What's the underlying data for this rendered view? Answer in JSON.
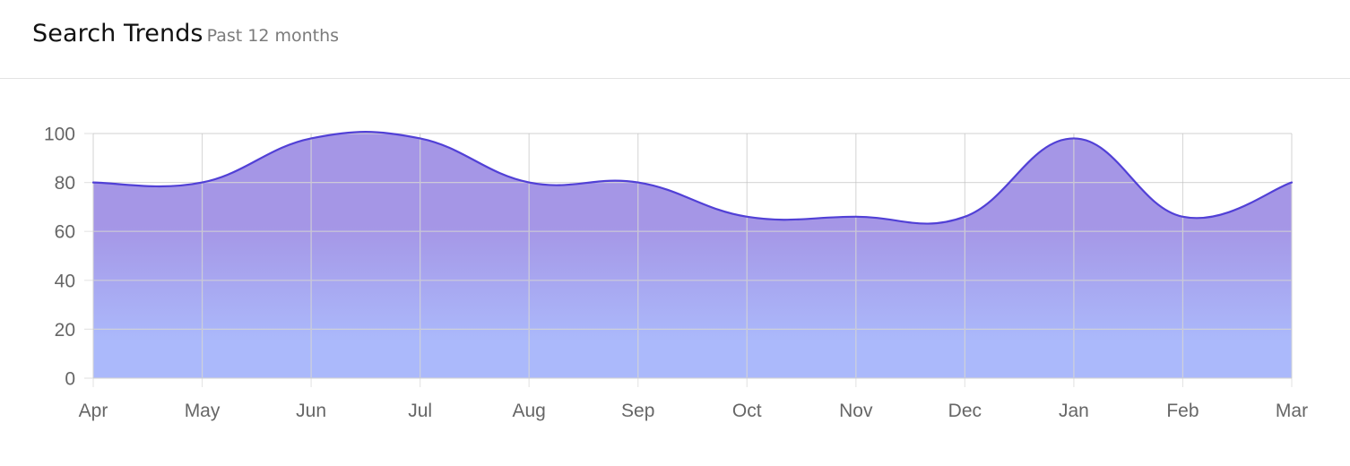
{
  "header": {
    "title": "Search Trends",
    "subtitle": "Past 12 months"
  },
  "colors": {
    "line": "#5140d6",
    "fill_top": "#a596e6",
    "fill_bottom": "#abb9fb",
    "grid": "#e2e2e2",
    "tick_text": "#666666"
  },
  "chart_data": {
    "type": "area",
    "title": "",
    "xlabel": "",
    "ylabel": "",
    "categories": [
      "Apr",
      "May",
      "Jun",
      "Jul",
      "Aug",
      "Sep",
      "Oct",
      "Nov",
      "Dec",
      "Jan",
      "Feb",
      "Mar"
    ],
    "series": [
      {
        "values": [
          80,
          80,
          98,
          98,
          80,
          80,
          66,
          66,
          66,
          98,
          66,
          80
        ]
      }
    ],
    "ylim": [
      0,
      100
    ],
    "yticks": [
      0,
      20,
      40,
      60,
      80,
      100
    ],
    "grid": true,
    "legend": "none",
    "smooth": true
  }
}
